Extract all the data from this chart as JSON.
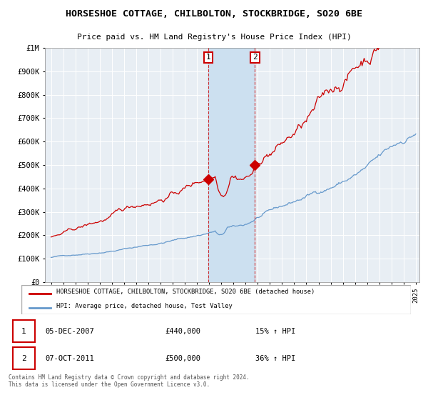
{
  "title": "HORSESHOE COTTAGE, CHILBOLTON, STOCKBRIDGE, SO20 6BE",
  "subtitle": "Price paid vs. HM Land Registry's House Price Index (HPI)",
  "legend_line1": "HORSESHOE COTTAGE, CHILBOLTON, STOCKBRIDGE, SO20 6BE (detached house)",
  "legend_line2": "HPI: Average price, detached house, Test Valley",
  "footer": "Contains HM Land Registry data © Crown copyright and database right 2024.\nThis data is licensed under the Open Government Licence v3.0.",
  "annotation1_date": "05-DEC-2007",
  "annotation1_price": "£440,000",
  "annotation1_hpi": "15% ↑ HPI",
  "annotation2_date": "07-OCT-2011",
  "annotation2_price": "£500,000",
  "annotation2_hpi": "36% ↑ HPI",
  "red_line_color": "#cc0000",
  "blue_line_color": "#6699cc",
  "background_color": "#e8eef4",
  "shaded_region_color": "#cce0f0",
  "marker1_x": 2007.92,
  "marker1_y": 440000,
  "marker2_x": 2011.77,
  "marker2_y": 500000,
  "vline1_x": 2007.92,
  "vline2_x": 2011.77,
  "ylim": [
    0,
    1000000
  ],
  "xlim": [
    1994.5,
    2025.3
  ],
  "start_year": 1995,
  "end_year": 2025,
  "n_months": 361
}
